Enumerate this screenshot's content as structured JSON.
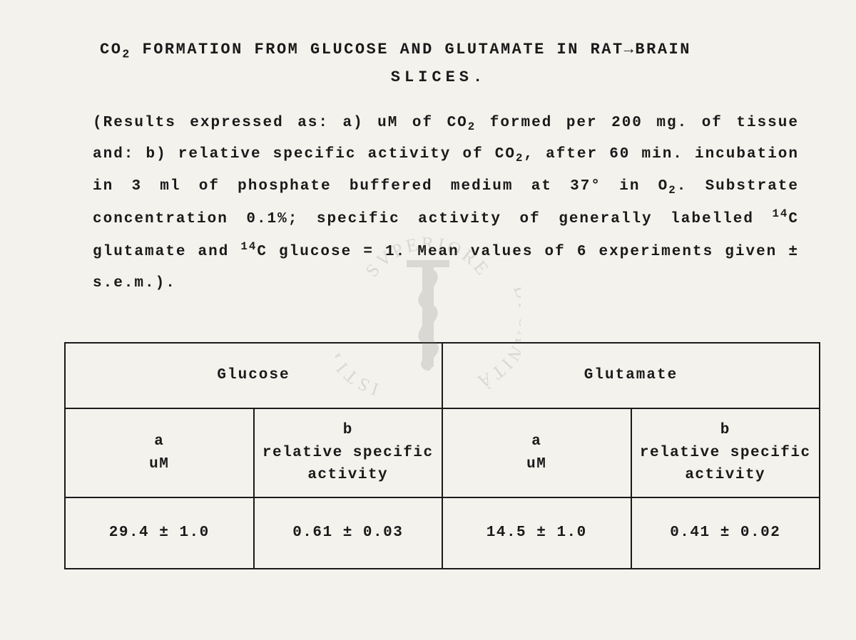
{
  "title": {
    "line1_html": "CO<sub>2</sub> FORMATION FROM GLUCOSE AND GLUTAMATE IN RAT→BRAIN",
    "line2": "SLICES."
  },
  "description_html": "(Results expressed as: a) uM of CO<sub>2</sub> formed per 200 mg. of tissue and: b) relative specific activity of CO<sub>2</sub>, after 60 min. incubation in 3 ml of phosphate buffered medium at 37° in O<sub>2</sub>. Substrate concentration 0.1%; specific activity of generally labelled <sup>14</sup>C glutamate and <sup>14</sup>C glucose = 1. Mean values of 6 experiments given ± s.e.m.).",
  "watermark": {
    "text_top": "SVPERIORE",
    "text_left": "ISTITVTO",
    "text_right": "DI SANITÀ",
    "color": "#9a9a9a"
  },
  "table": {
    "groups": [
      "Glucose",
      "Glutamate"
    ],
    "subheaders": {
      "a_html": "a<br>uM",
      "b_html": "b<br>relative specific<br>activity"
    },
    "rows": [
      {
        "glucose_a": "29.4 ± 1.0",
        "glucose_b": "0.61 ± 0.03",
        "glutamate_a": "14.5 ± 1.0",
        "glutamate_b": "0.41 ± 0.02"
      }
    ],
    "border_color": "#1a1a1a"
  },
  "colors": {
    "background": "#f4f2ed",
    "text": "#1a1a1a"
  }
}
